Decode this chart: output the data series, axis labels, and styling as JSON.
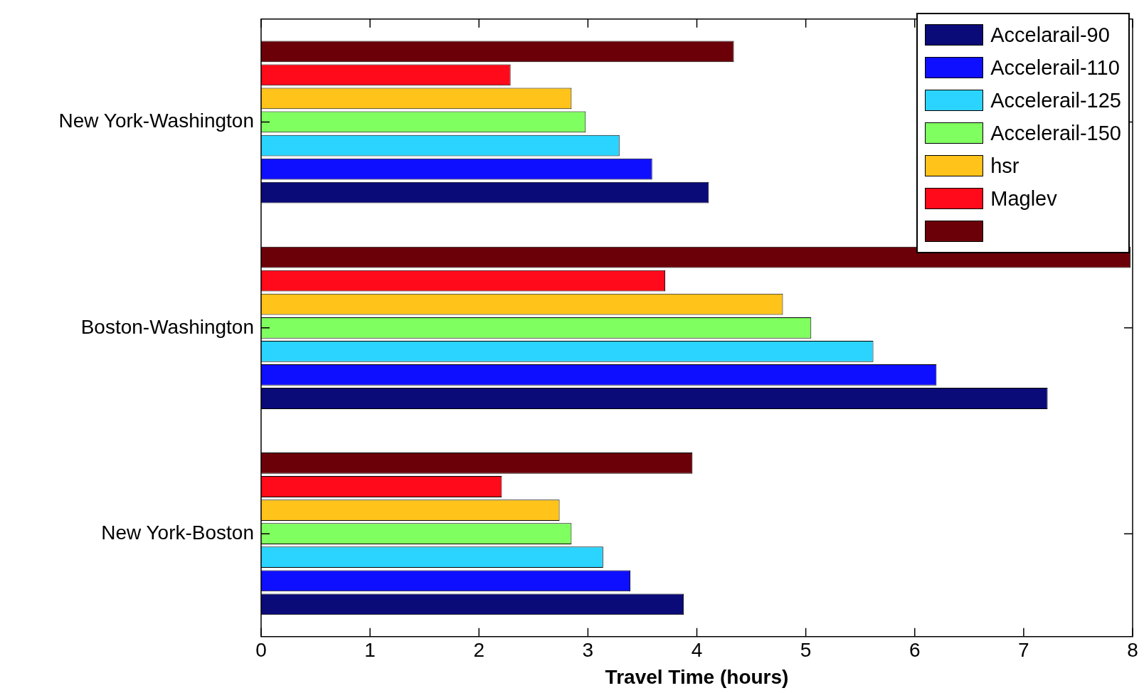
{
  "chart_data": {
    "type": "bar",
    "orientation": "horizontal",
    "xlabel": "Travel Time (hours)",
    "categories": [
      "New York-Washington",
      "Boston-Washington",
      "New York-Boston"
    ],
    "series": [
      {
        "name": "Accelarail-90",
        "color": "#0a0a78",
        "values": [
          4.11,
          7.22,
          3.88
        ]
      },
      {
        "name": "Accelerail-110",
        "color": "#0f0fff",
        "values": [
          3.59,
          6.2,
          3.39
        ]
      },
      {
        "name": "Accelerail-125",
        "color": "#2ad4ff",
        "values": [
          3.29,
          5.62,
          3.14
        ]
      },
      {
        "name": "Accelerail-150",
        "color": "#80ff60",
        "values": [
          2.98,
          5.05,
          2.85
        ]
      },
      {
        "name": "hsr",
        "color": "#ffc31a",
        "values": [
          2.85,
          4.79,
          2.74
        ]
      },
      {
        "name": "Maglev",
        "color": "#ff0a1a",
        "values": [
          2.29,
          3.71,
          2.21
        ]
      },
      {
        "color": "#6b0008",
        "values": [
          4.34,
          7.98,
          3.96
        ]
      }
    ],
    "xlim": [
      0,
      8
    ],
    "xticks": [
      0,
      1,
      2,
      3,
      4,
      5,
      6,
      7,
      8
    ],
    "grid": false,
    "legend": "top right"
  }
}
